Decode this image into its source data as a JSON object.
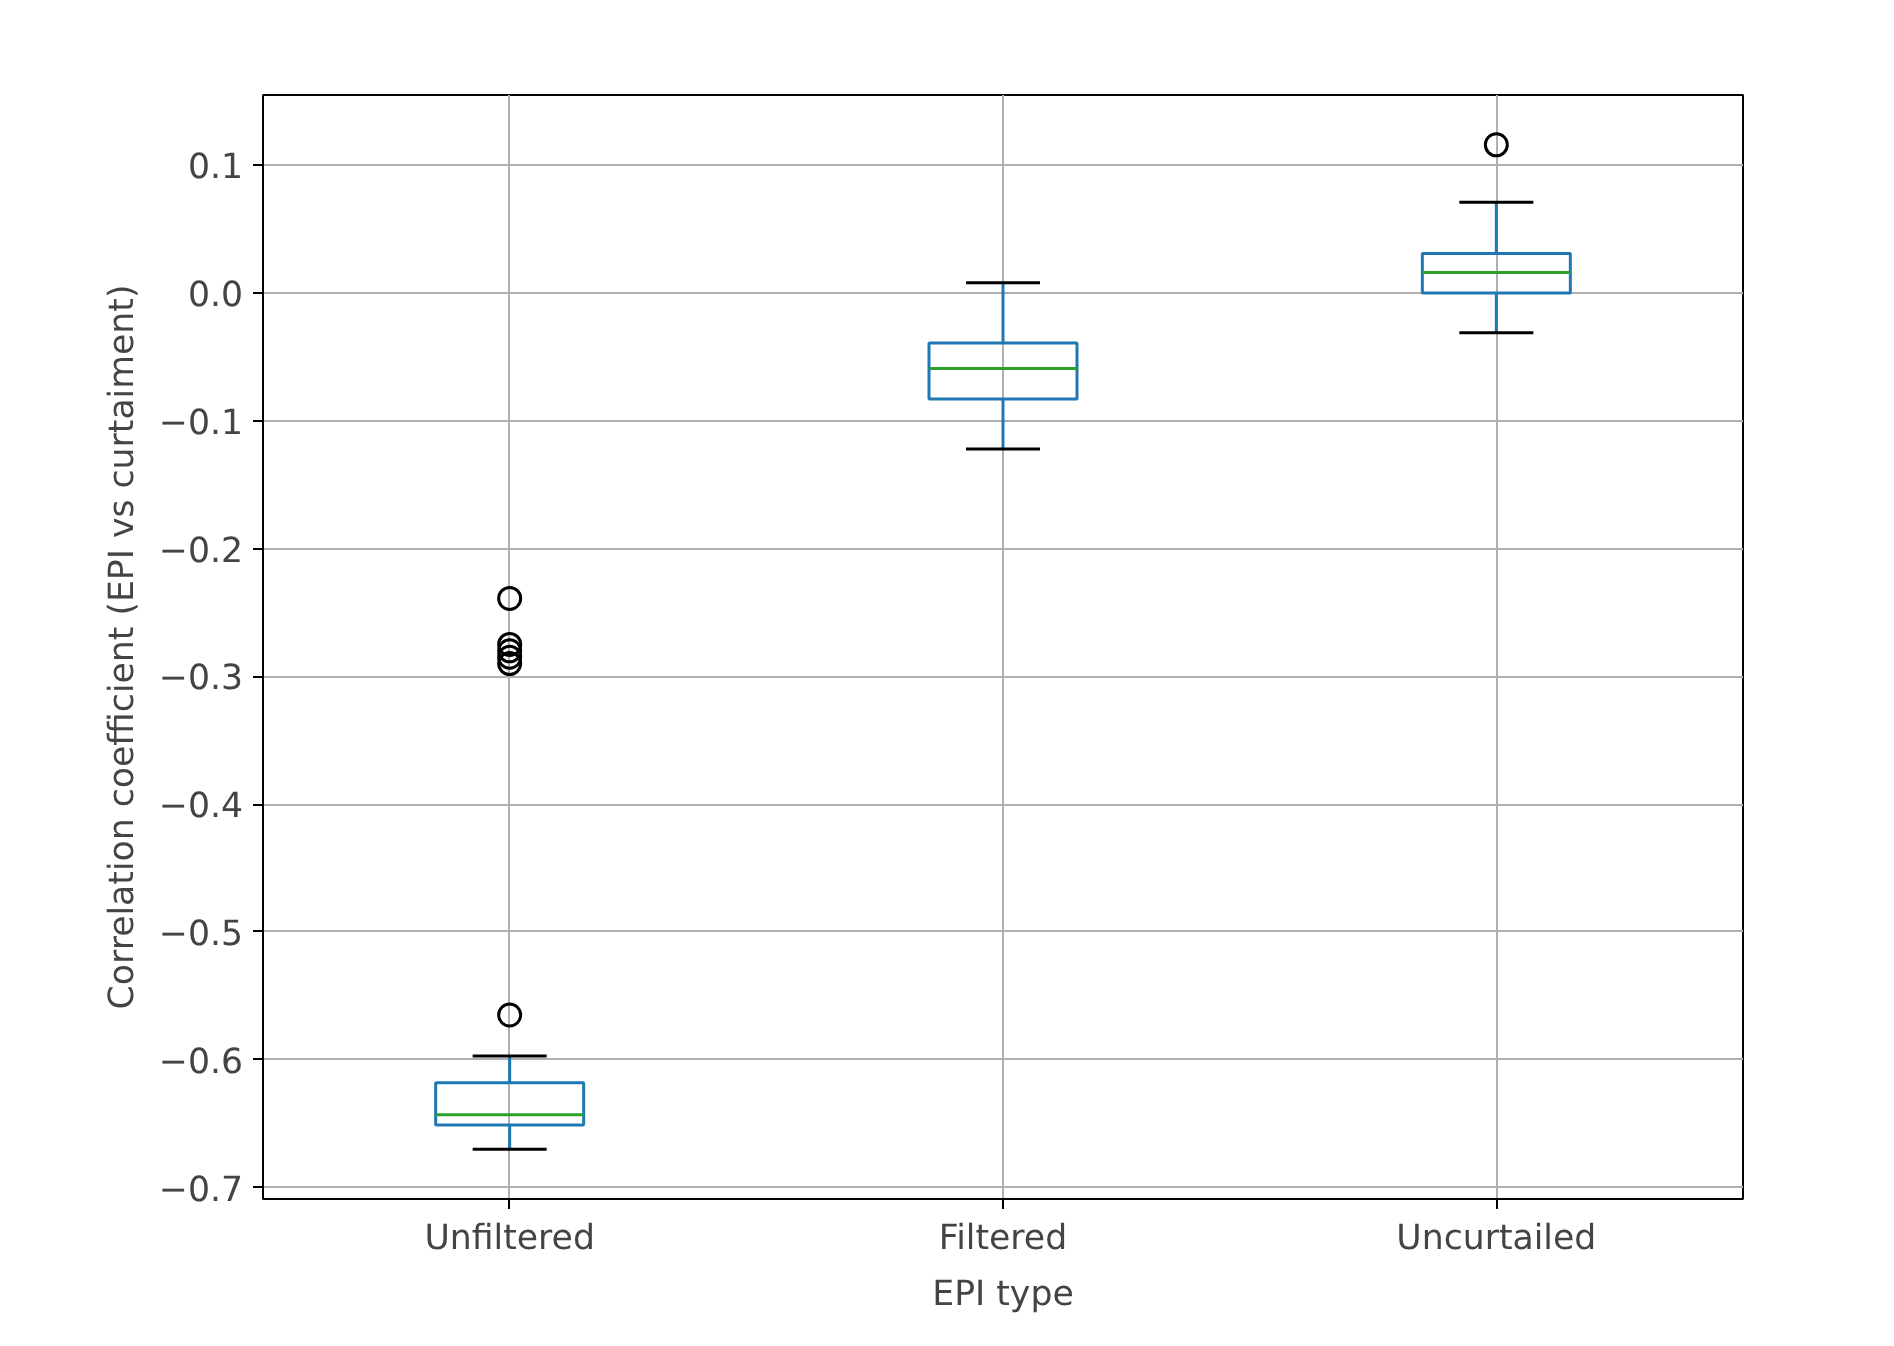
{
  "chart_data": {
    "type": "box",
    "xlabel": "EPI type",
    "ylabel": "Correlation coefficient (EPI vs curtaiment)",
    "categories": [
      "Unfiltered",
      "Filtered",
      "Uncurtailed"
    ],
    "boxes": [
      {
        "low": -0.67,
        "q1": -0.651,
        "median": -0.643,
        "q3": -0.618,
        "high": -0.597,
        "outliers": [
          -0.565,
          -0.29,
          -0.285,
          -0.28,
          -0.275,
          -0.239
        ]
      },
      {
        "low": -0.122,
        "q1": -0.083,
        "median": -0.059,
        "q3": -0.039,
        "high": 0.008
      },
      {
        "low": -0.031,
        "q1": 0.0,
        "median": 0.016,
        "q3": 0.031,
        "high": 0.071,
        "outliers": [
          0.116
        ]
      }
    ],
    "ylim": [
      -0.709,
      0.155
    ],
    "yticks": [
      {
        "value": -0.7,
        "label": "−0.7"
      },
      {
        "value": -0.6,
        "label": "−0.6"
      },
      {
        "value": -0.5,
        "label": "−0.5"
      },
      {
        "value": -0.4,
        "label": "−0.4"
      },
      {
        "value": -0.3,
        "label": "−0.3"
      },
      {
        "value": -0.2,
        "label": "−0.2"
      },
      {
        "value": -0.1,
        "label": "−0.1"
      },
      {
        "value": 0,
        "label": "0.0"
      },
      {
        "value": 0.1,
        "label": "0.1"
      }
    ],
    "grid": true
  }
}
